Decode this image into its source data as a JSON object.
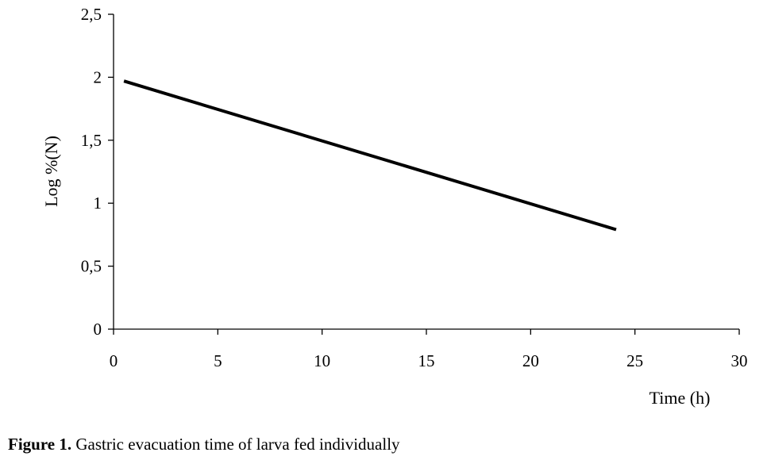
{
  "chart_data": {
    "type": "line",
    "xlabel": "Time (h)",
    "ylabel": "Log %(N)",
    "xlim": [
      0,
      30
    ],
    "ylim": [
      0,
      2.5
    ],
    "xticks": [
      0,
      5,
      10,
      15,
      20,
      25,
      30
    ],
    "xtick_labels": [
      "0",
      "5",
      "10",
      "15",
      "20",
      "25",
      "30"
    ],
    "yticks": [
      0,
      0.5,
      1,
      1.5,
      2,
      2.5
    ],
    "ytick_labels": [
      "0",
      "0,5",
      "1",
      "1,5",
      "2",
      "2,5"
    ],
    "grid": false,
    "legend": "none",
    "series": [
      {
        "color": "#000000",
        "x": [
          0.5,
          24.1
        ],
        "y": [
          1.97,
          0.79
        ]
      }
    ]
  },
  "caption": {
    "label": "Figure 1.",
    "text": " Gastric evacuation time of larva fed individually"
  }
}
